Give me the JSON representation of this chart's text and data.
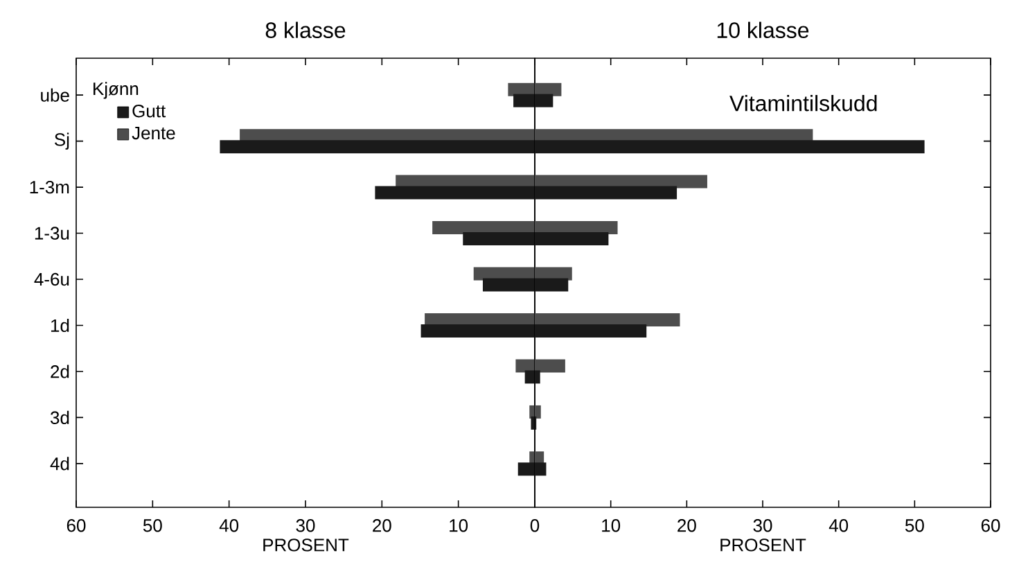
{
  "chart_data": [
    {
      "type": "bar",
      "orientation": "horizontal",
      "title": "8 klasse",
      "xlabel": "PROSENT",
      "legend": "top left",
      "legend_title": "Kjønn",
      "categories": [
        "ube",
        "Sj",
        "1-3m",
        "1-3u",
        "4-6u",
        "1d",
        "2d",
        "3d",
        "4d"
      ],
      "series": [
        {
          "name": "Gutt",
          "color": "#1a1a1a",
          "values": [
            2.8,
            41.2,
            20.9,
            9.4,
            6.8,
            14.9,
            1.3,
            0.5,
            2.2
          ]
        },
        {
          "name": "Jente",
          "color": "#4d4d4d",
          "values": [
            3.5,
            38.6,
            18.2,
            13.4,
            8.0,
            14.4,
            2.5,
            0.7,
            0.7
          ]
        }
      ],
      "xlim": [
        60,
        0
      ],
      "xticks": [
        60,
        50,
        40,
        30,
        20,
        10,
        0
      ]
    },
    {
      "type": "bar",
      "orientation": "horizontal",
      "title": "10 klasse",
      "xlabel": "PROSENT",
      "annotations": [
        "Vitamintilskudd"
      ],
      "tick_labels": "x",
      "categories": [
        null,
        null,
        null,
        null,
        null,
        null,
        null,
        null,
        null
      ],
      "series": [
        {
          "color": "#1a1a1a",
          "values": [
            2.4,
            51.3,
            18.7,
            9.7,
            4.4,
            14.7,
            0.7,
            0.2,
            1.5
          ]
        },
        {
          "color": "#4d4d4d",
          "values": [
            3.5,
            36.6,
            22.7,
            10.9,
            4.9,
            19.1,
            4.0,
            0.8,
            1.2
          ]
        }
      ],
      "xlim": [
        0,
        60
      ],
      "xticks": [
        {
          "value": 0,
          "label": null
        },
        10,
        20,
        30,
        40,
        50,
        60
      ]
    }
  ]
}
